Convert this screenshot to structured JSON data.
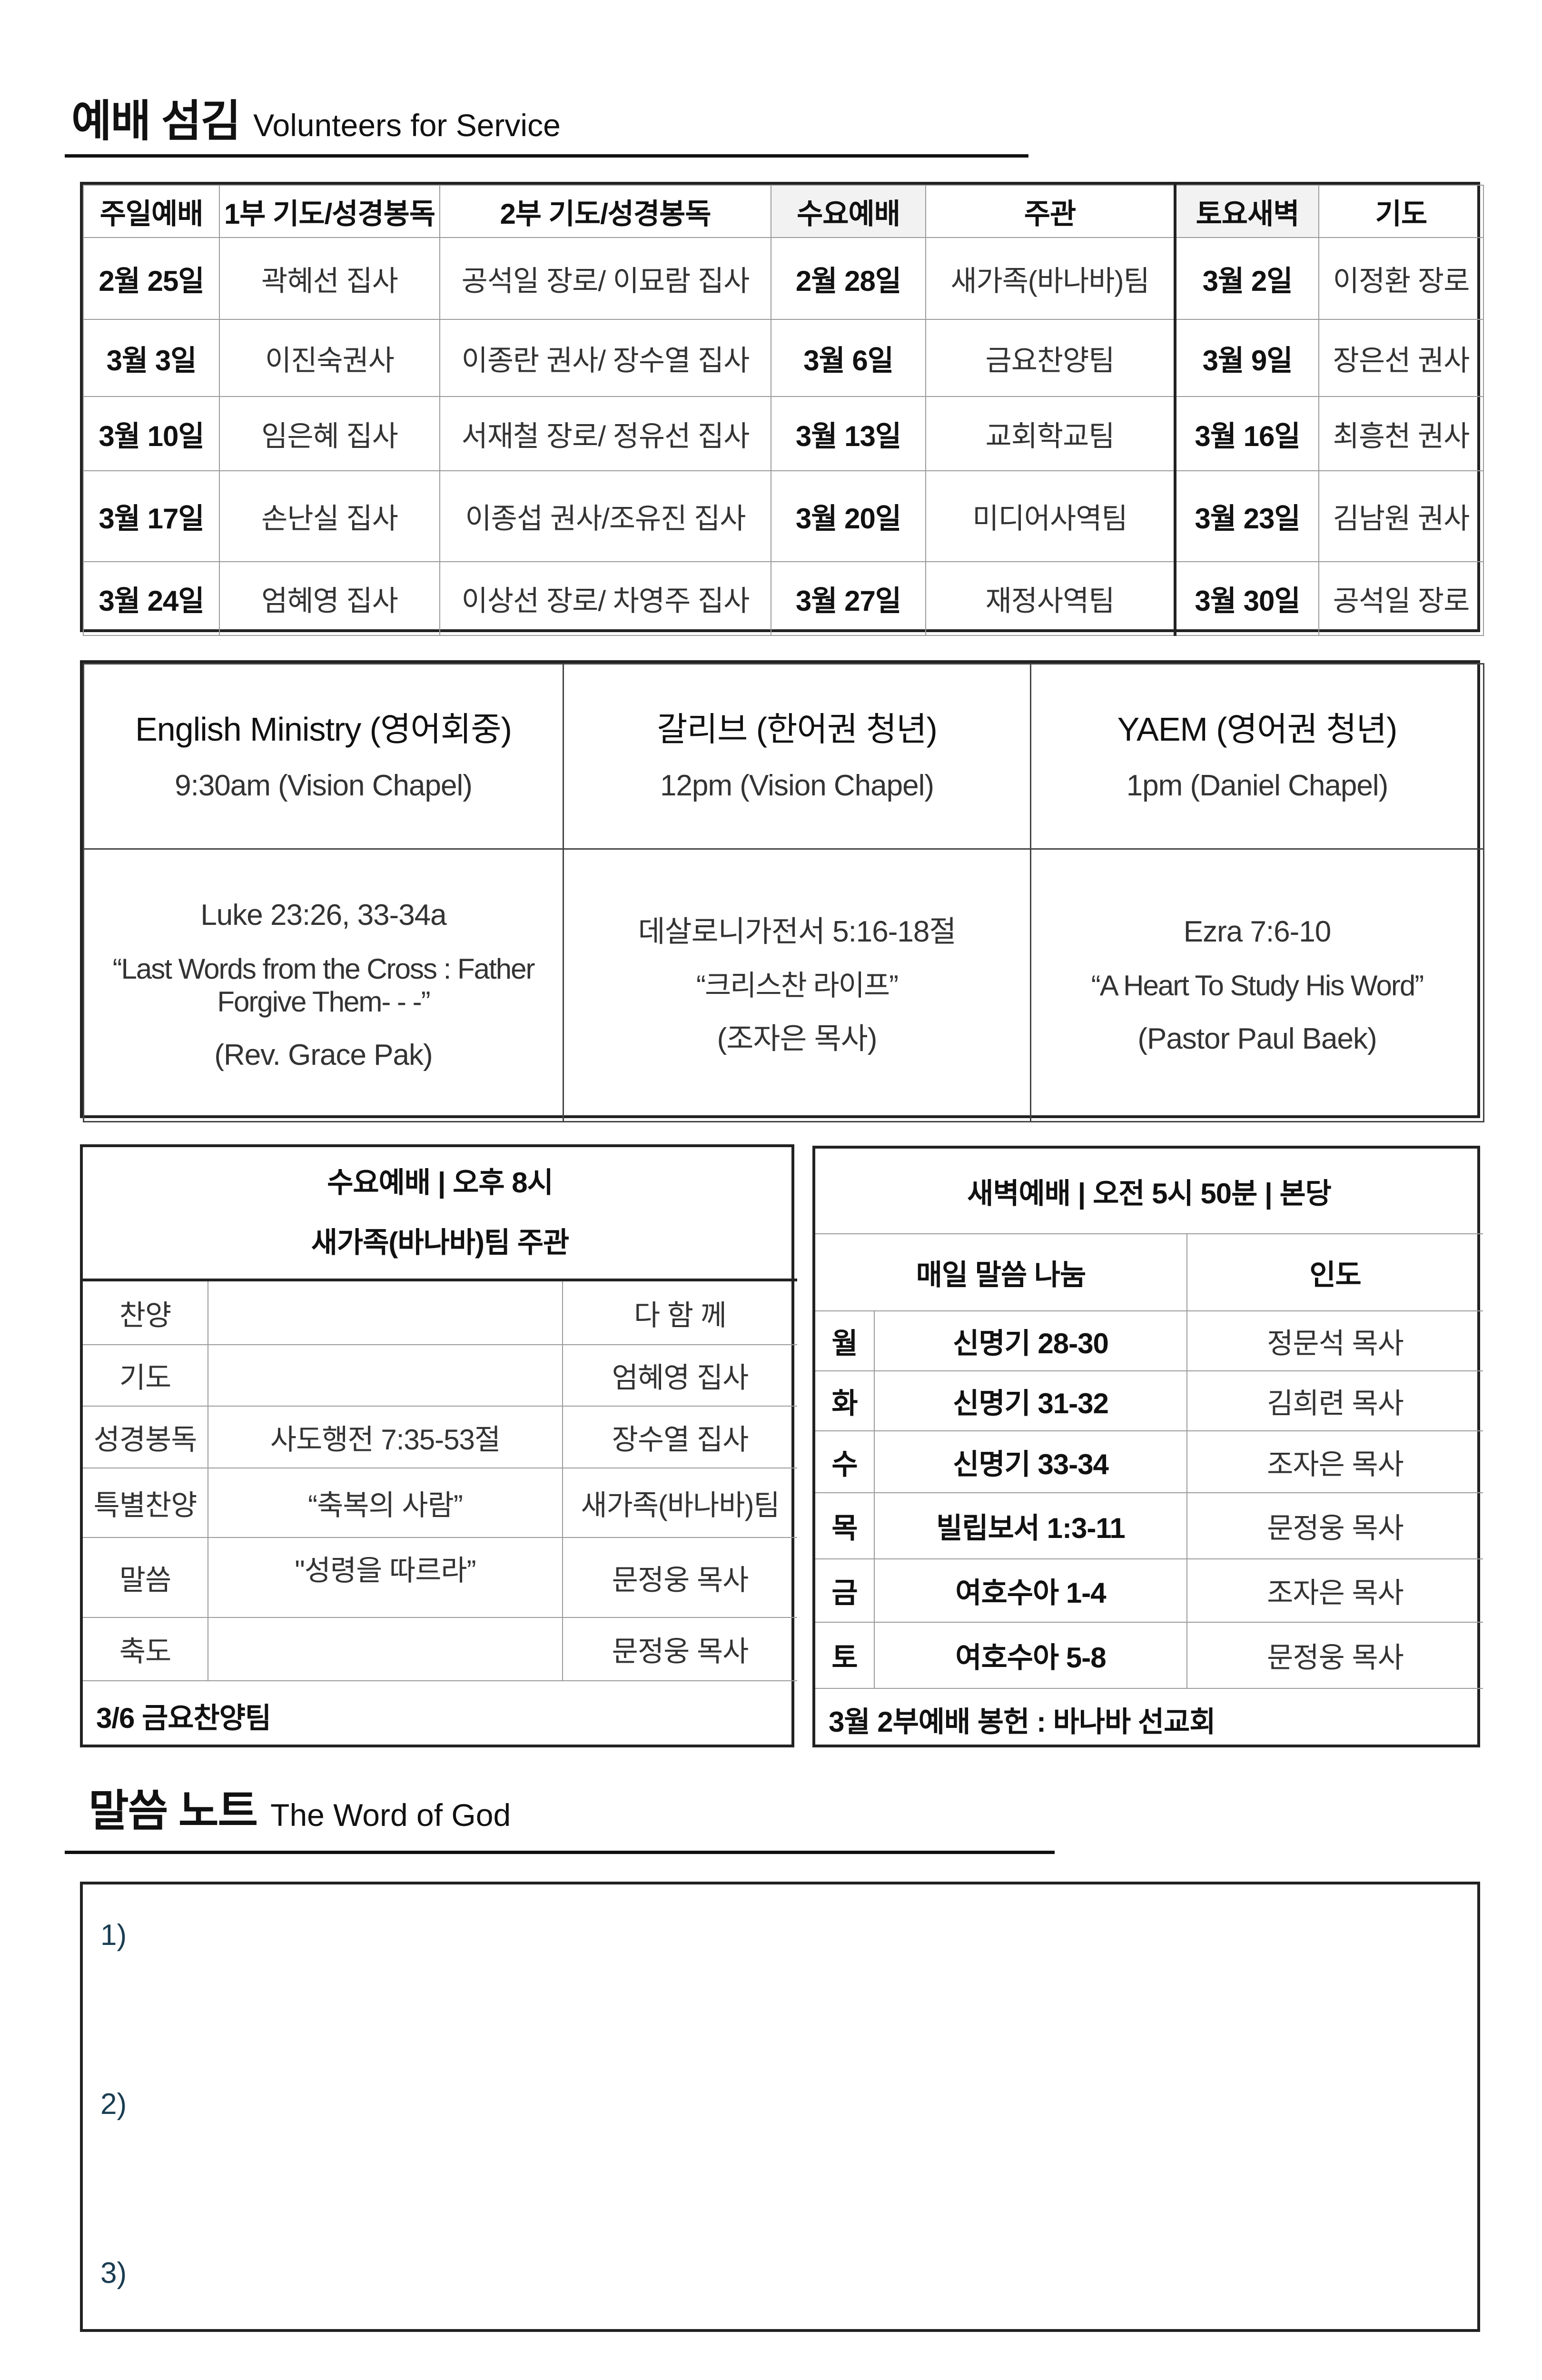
{
  "volunteers": {
    "title": "예배 섬김",
    "title_en": "Volunteers for Service",
    "headers": [
      "주일예배",
      "1부 기도/성경봉독",
      "2부 기도/성경봉독",
      "수요예배",
      "주관",
      "토요새벽",
      "기도"
    ],
    "rows": [
      [
        "2월 25일",
        "곽혜선 집사",
        "공석일 장로/ 이묘람 집사",
        "2월 28일",
        "새가족(바나바)팀",
        "3월 2일",
        "이정환 장로"
      ],
      [
        "3월 3일",
        "이진숙권사",
        "이종란 권사/ 장수열 집사",
        "3월 6일",
        "금요찬양팀",
        "3월 9일",
        "장은선 권사"
      ],
      [
        "3월 10일",
        "임은혜 집사",
        "서재철 장로/ 정유선 집사",
        "3월 13일",
        "교회학교팀",
        "3월 16일",
        "최흥천 권사"
      ],
      [
        "3월 17일",
        "손난실 집사",
        "이종섭 권사/조유진 집사",
        "3월 20일",
        "미디어사역팀",
        "3월 23일",
        "김남원 권사"
      ],
      [
        "3월 24일",
        "엄혜영 집사",
        "이상선 장로/ 차영주 집사",
        "3월 27일",
        "재정사역팀",
        "3월 30일",
        "공석일 장로"
      ]
    ]
  },
  "ministries": [
    {
      "name": "English Ministry (영어회중)",
      "time": "9:30am (Vision Chapel)",
      "passage": "Luke 23:26, 33-34a",
      "sermon": "“Last Words from the Cross : Father Forgive Them- - -”",
      "preacher": "(Rev. Grace Pak)"
    },
    {
      "name": "갈리브 (한어권 청년)",
      "time": "12pm (Vision Chapel)",
      "passage": "데살로니가전서 5:16-18절",
      "sermon": "“크리스찬 라이프”",
      "preacher": "(조자은 목사)"
    },
    {
      "name": "YAEM (영어권 청년)",
      "time": "1pm (Daniel Chapel)",
      "passage": "Ezra 7:6-10",
      "sermon": "“A Heart To Study His Word”",
      "preacher": "(Pastor Paul Baek)"
    }
  ],
  "wednesday": {
    "title": "수요예배 | 오후 8시",
    "subtitle": "새가족(바나바)팀 주관",
    "rows": [
      [
        "찬양",
        "",
        "다 함 께"
      ],
      [
        "기도",
        "",
        "엄혜영 집사"
      ],
      [
        "성경봉독",
        "사도행전 7:35-53절",
        "장수열 집사"
      ],
      [
        "특별찬양",
        "“축복의 사람”",
        "새가족(바나바)팀"
      ],
      [
        "말씀",
        "\"성령을 따르라”",
        "문정웅 목사"
      ],
      [
        "축도",
        "",
        "문정웅 목사"
      ]
    ],
    "footer": "3/6 금요찬양팀"
  },
  "dawn": {
    "title": "새벽예배 | 오전 5시 50분 | 본당",
    "col_reading": "매일 말씀 나눔",
    "col_leader": "인도",
    "rows": [
      [
        "월",
        "신명기 28-30",
        "정문석 목사"
      ],
      [
        "화",
        "신명기 31-32",
        "김희련 목사"
      ],
      [
        "수",
        "신명기 33-34",
        "조자은 목사"
      ],
      [
        "목",
        "빌립보서 1:3-11",
        "문정웅 목사"
      ],
      [
        "금",
        "여호수아 1-4",
        "조자은 목사"
      ],
      [
        "토",
        "여호수아 5-8",
        "문정웅 목사"
      ]
    ],
    "footer": "3월  2부예배 봉헌 : 바나바 선교회"
  },
  "notes": {
    "title": "말씀 노트",
    "title_en": "The Word of God",
    "items": [
      "1)",
      "2)",
      "3)"
    ],
    "number_color": "#1a3d52"
  }
}
